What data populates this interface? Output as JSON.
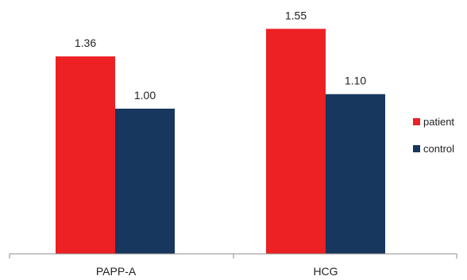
{
  "chart_data": {
    "type": "bar",
    "categories": [
      "PAPP-A",
      "HCG"
    ],
    "series": [
      {
        "name": "patient",
        "values": [
          1.36,
          1.55
        ],
        "labels": [
          "1.36",
          "1.55"
        ],
        "color": "#ed2024"
      },
      {
        "name": "control",
        "values": [
          1.0,
          1.1
        ],
        "labels": [
          "1.00",
          "1.10"
        ],
        "color": "#17375e"
      }
    ],
    "ylim": [
      0,
      1.7
    ],
    "grid": false,
    "legend_placement": "right"
  }
}
